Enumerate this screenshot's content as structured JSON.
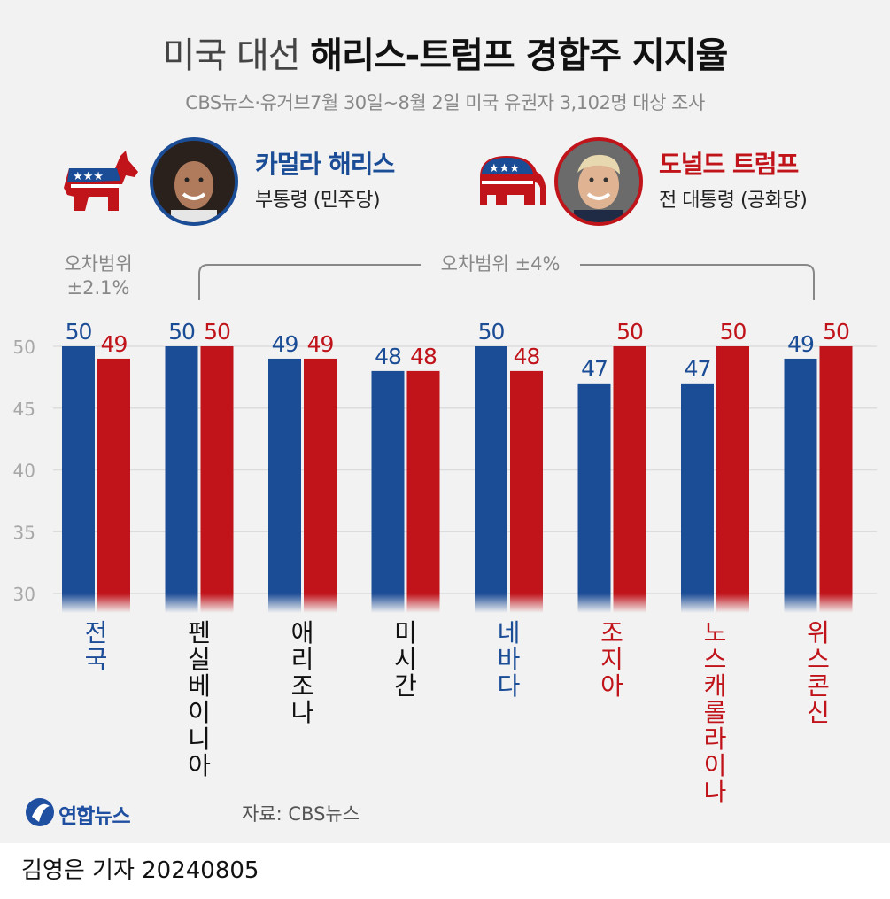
{
  "title": {
    "light": "미국 대선 ",
    "bold": "해리스-트럼프 경합주 지지율"
  },
  "subtitle": "CBS뉴스·유거브7월 30일~8월 2일 미국 유권자 3,102명 대상 조사",
  "candidates": {
    "harris": {
      "name": "카멀라 해리스",
      "role": "부통령 (민주당)",
      "color": "#1b4c96"
    },
    "trump": {
      "name": "도널드 트럼프",
      "role": "전 대통령 (공화당)",
      "color": "#c0131a"
    }
  },
  "margin_national": {
    "line1": "오차범위",
    "line2": "±2.1%"
  },
  "margin_states": "오차범위 ±4%",
  "chart_data": {
    "type": "bar",
    "categories": [
      "전국",
      "펜실베이니아",
      "애리조나",
      "미시간",
      "네바다",
      "조지아",
      "노스캐롤라이나",
      "위스콘신"
    ],
    "category_colors": [
      "#1b4c96",
      "#111111",
      "#111111",
      "#111111",
      "#1b4c96",
      "#c0131a",
      "#c0131a",
      "#c0131a"
    ],
    "series": [
      {
        "name": "카멀라 해리스",
        "color": "#1b4c96",
        "values": [
          50,
          50,
          49,
          48,
          50,
          47,
          47,
          49
        ]
      },
      {
        "name": "도널드 트럼프",
        "color": "#c0131a",
        "values": [
          49,
          50,
          49,
          48,
          48,
          50,
          50,
          50
        ]
      }
    ],
    "yticks": [
      30,
      35,
      40,
      45,
      50
    ],
    "ylim": [
      30,
      52
    ],
    "grid": true
  },
  "source": "자료: CBS뉴스",
  "logo": "연합뉴스",
  "reporter": "김영은 기자  20240805"
}
